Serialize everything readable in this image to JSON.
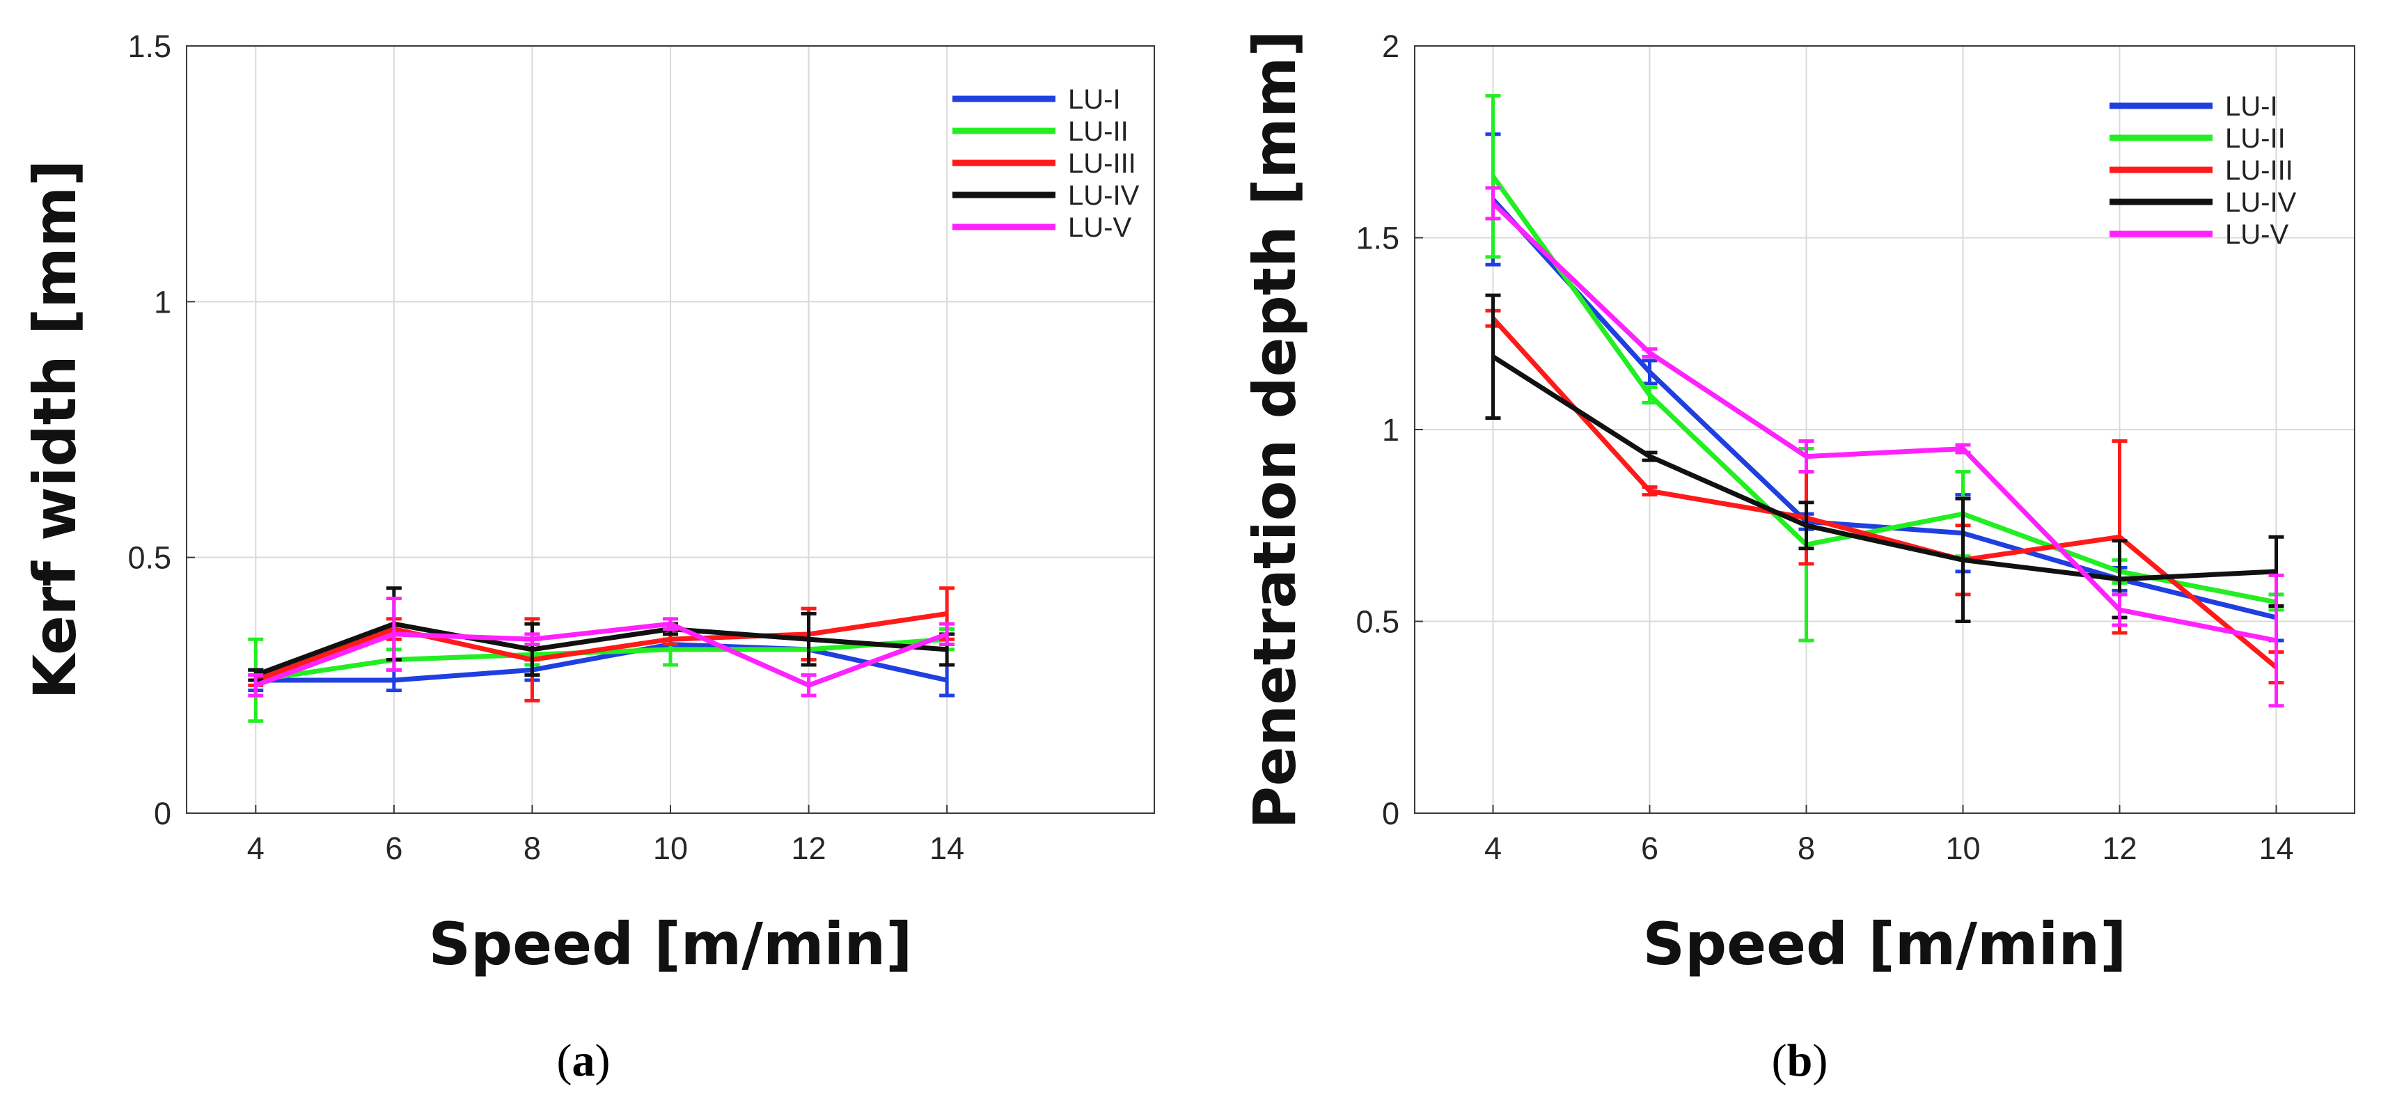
{
  "chart_data": [
    {
      "type": "line",
      "panel": "a",
      "x": [
        4,
        6,
        8,
        10,
        12,
        14
      ],
      "xlabel": "Speed [m/min]",
      "ylabel": "Kerf width [mm]",
      "xlim": [
        3,
        17
      ],
      "ylim": [
        0,
        1.5
      ],
      "xticks": [
        "4",
        "6",
        "8",
        "10",
        "12",
        "14"
      ],
      "yticks": [
        "0",
        "0.5",
        "1",
        "1.5"
      ],
      "ytick_values": [
        0,
        0.5,
        1,
        1.5
      ],
      "grid": true,
      "legend_position": "top-right",
      "series": [
        {
          "name": "LU-I",
          "color": "#1f3fe0",
          "values": [
            0.26,
            0.26,
            0.28,
            0.33,
            0.32,
            0.26
          ],
          "errors": [
            0.02,
            0.02,
            0.02,
            0.01,
            0.02,
            0.03
          ]
        },
        {
          "name": "LU-II",
          "color": "#22ee22",
          "values": [
            0.26,
            0.3,
            0.31,
            0.32,
            0.32,
            0.34
          ],
          "errors": [
            0.08,
            0.02,
            0.02,
            0.03,
            0.02,
            0.02
          ]
        },
        {
          "name": "LU-III",
          "color": "#ff1a1a",
          "values": [
            0.26,
            0.36,
            0.3,
            0.34,
            0.35,
            0.39
          ],
          "errors": [
            0.01,
            0.02,
            0.08,
            0.01,
            0.05,
            0.05
          ]
        },
        {
          "name": "LU-IV",
          "color": "#111111",
          "values": [
            0.27,
            0.37,
            0.32,
            0.36,
            0.34,
            0.32
          ],
          "errors": [
            0.01,
            0.07,
            0.05,
            0.01,
            0.05,
            0.03
          ]
        },
        {
          "name": "LU-V",
          "color": "#ff22ff",
          "values": [
            0.25,
            0.35,
            0.34,
            0.37,
            0.25,
            0.35
          ],
          "errors": [
            0.02,
            0.07,
            0.01,
            0.01,
            0.02,
            0.02
          ]
        }
      ]
    },
    {
      "type": "line",
      "panel": "b",
      "x": [
        4,
        6,
        8,
        10,
        12,
        14
      ],
      "xlabel": "Speed [m/min]",
      "ylabel": "Penetration depth [mm]",
      "xlim": [
        3,
        15
      ],
      "ylim": [
        0,
        2
      ],
      "xticks": [
        "4",
        "6",
        "8",
        "10",
        "12",
        "14"
      ],
      "yticks": [
        "0",
        "0.5",
        "1",
        "1.5",
        "2"
      ],
      "ytick_values": [
        0,
        0.5,
        1,
        1.5,
        2
      ],
      "grid": true,
      "legend_position": "top-right",
      "series": [
        {
          "name": "LU-I",
          "color": "#1f3fe0",
          "values": [
            1.6,
            1.15,
            0.76,
            0.73,
            0.61,
            0.51
          ],
          "errors": [
            0.17,
            0.03,
            0.02,
            0.1,
            0.03,
            0.06
          ]
        },
        {
          "name": "LU-II",
          "color": "#22ee22",
          "values": [
            1.66,
            1.09,
            0.7,
            0.78,
            0.63,
            0.55
          ],
          "errors": [
            0.21,
            0.02,
            0.25,
            0.11,
            0.03,
            0.02
          ]
        },
        {
          "name": "LU-III",
          "color": "#ff1a1a",
          "values": [
            1.29,
            0.84,
            0.77,
            0.66,
            0.72,
            0.38
          ],
          "errors": [
            0.02,
            0.01,
            0.12,
            0.09,
            0.25,
            0.04
          ]
        },
        {
          "name": "LU-IV",
          "color": "#111111",
          "values": [
            1.19,
            0.93,
            0.75,
            0.66,
            0.61,
            0.63
          ],
          "errors": [
            0.16,
            0.01,
            0.06,
            0.16,
            0.1,
            0.09
          ]
        },
        {
          "name": "LU-V",
          "color": "#ff22ff",
          "values": [
            1.59,
            1.2,
            0.93,
            0.95,
            0.53,
            0.45
          ],
          "errors": [
            0.04,
            0.01,
            0.04,
            0.01,
            0.04,
            0.17
          ]
        }
      ]
    }
  ],
  "captions": {
    "a": "a",
    "b": "b"
  }
}
